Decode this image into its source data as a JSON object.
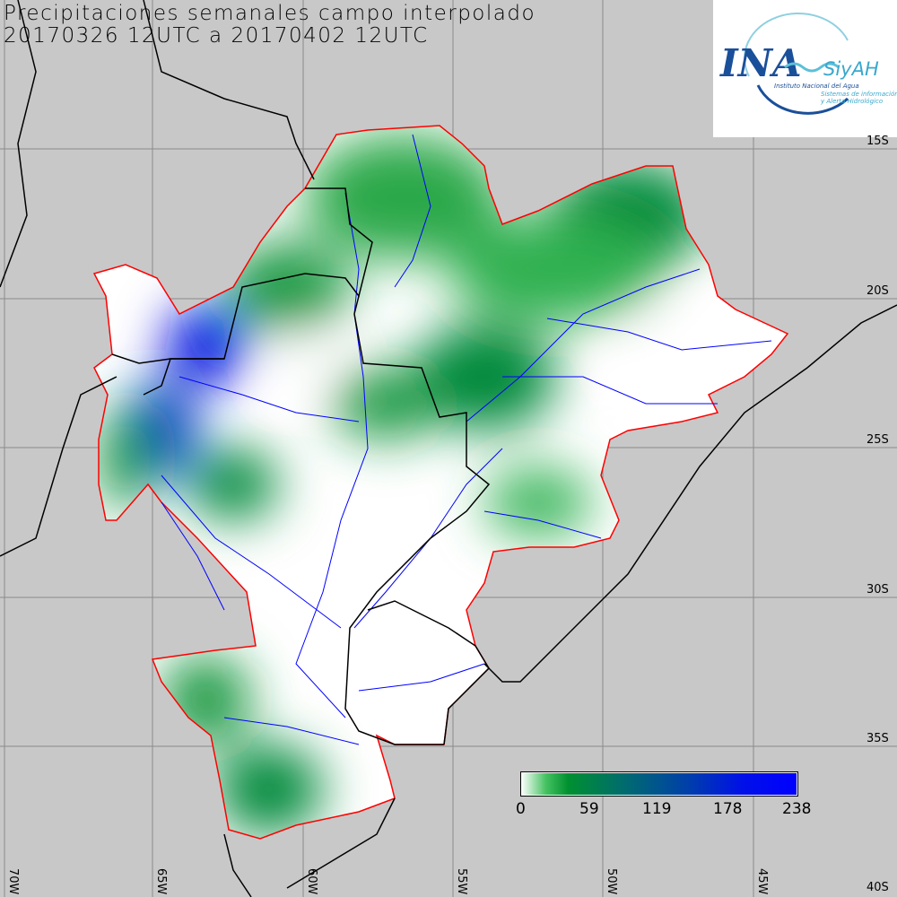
{
  "title_line1": "Precipitaciones semanales campo interpolado",
  "title_line2": "20170326 12UTC a 20170402 12UTC",
  "logo": {
    "main": "INA",
    "sub": "SiyAH",
    "org": "Instituto Nacional del Agua",
    "desc1": "Sistemas de información",
    "desc2": "y Alerta Hidrológico"
  },
  "lat_labels": [
    "15S",
    "20S",
    "25S",
    "30S",
    "35S",
    "40S"
  ],
  "lon_labels": [
    "70W",
    "65W",
    "60W",
    "55W",
    "50W",
    "45W"
  ],
  "colorbar": {
    "ticks": [
      "0",
      "59",
      "119",
      "178",
      "238"
    ],
    "min": 0,
    "max": 238,
    "colors": [
      "#ffffff",
      "#009030",
      "#006a70",
      "#0040a8",
      "#0000ff"
    ]
  },
  "colors": {
    "background": "#c8c8c8",
    "basin_outline": "#ff0000",
    "rivers": "#0000ff",
    "borders": "#000000"
  }
}
